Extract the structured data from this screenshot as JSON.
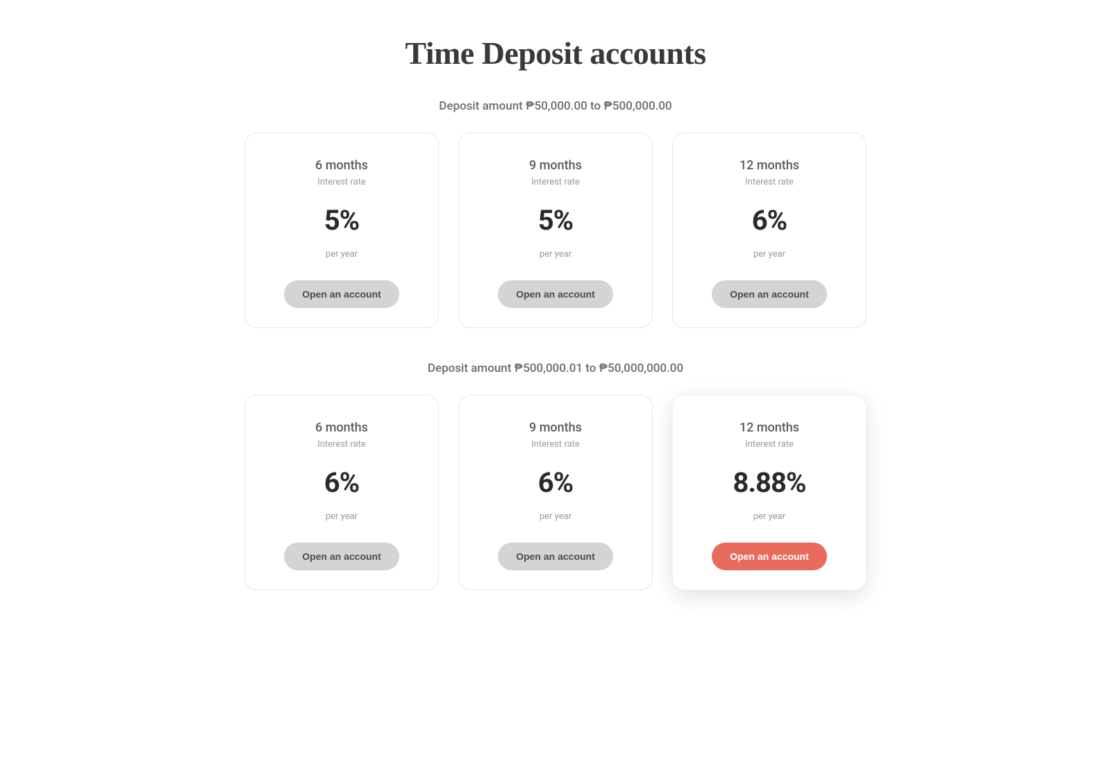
{
  "title": "Time Deposit accounts",
  "labels": {
    "interest_rate": "Interest rate",
    "per_year": "per year",
    "open_account": "Open an account"
  },
  "colors": {
    "background": "#ffffff",
    "title_text": "#3a3838",
    "body_text": "#6b6b6b",
    "muted_text": "#9a9a9a",
    "rate_text": "#2a2a2a",
    "card_border": "#e6e6e6",
    "button_default_bg": "#d5d4d2",
    "button_default_text": "#4a4a4a",
    "button_primary_bg": "#e86c5d",
    "button_primary_text": "#ffffff"
  },
  "tiers": [
    {
      "label": "Deposit amount ₱50,000.00 to ₱500,000.00",
      "cards": [
        {
          "term": "6 months",
          "rate": "5%",
          "highlighted": false
        },
        {
          "term": "9 months",
          "rate": "5%",
          "highlighted": false
        },
        {
          "term": "12 months",
          "rate": "6%",
          "highlighted": false
        }
      ]
    },
    {
      "label": "Deposit amount ₱500,000.01 to ₱50,000,000.00",
      "cards": [
        {
          "term": "6 months",
          "rate": "6%",
          "highlighted": false
        },
        {
          "term": "9 months",
          "rate": "6%",
          "highlighted": false
        },
        {
          "term": "12 months",
          "rate": "8.88%",
          "highlighted": true
        }
      ]
    }
  ]
}
